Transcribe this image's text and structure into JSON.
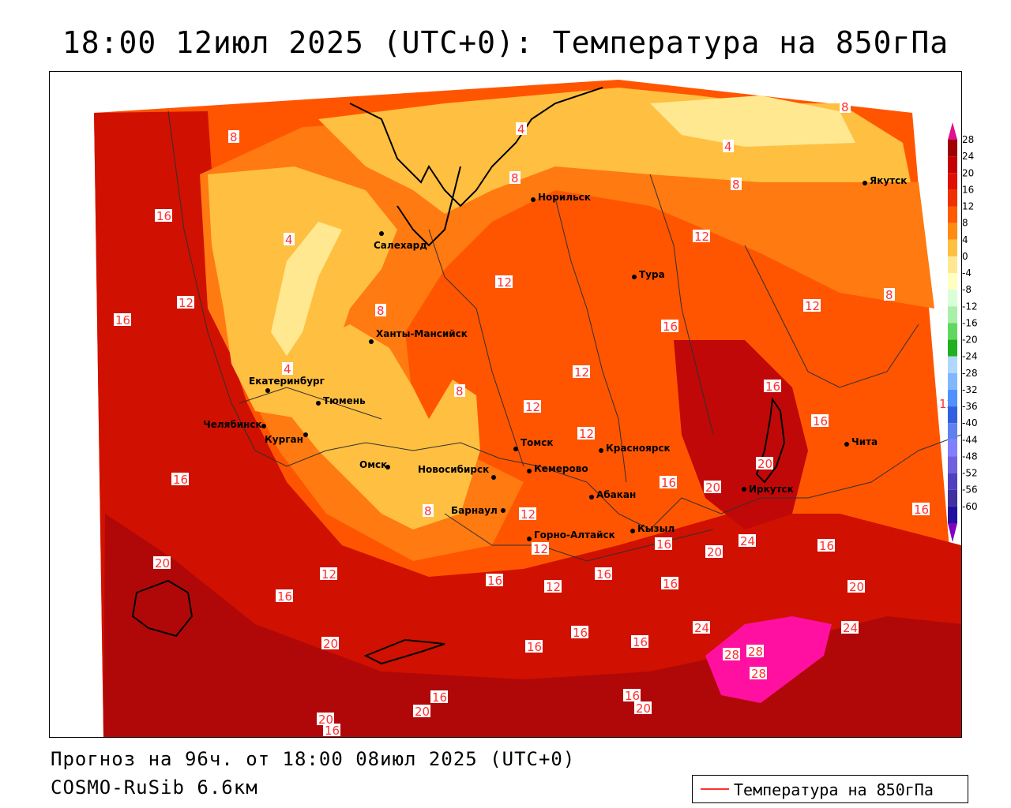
{
  "title": "18:00 12июл 2025 (UTC+0): Температура на 850гПа",
  "forecast_line": "Прогноз на 96ч. от 18:00 08июл 2025 (UTC+0)",
  "model_line": "COSMO-RuSib 6.6км",
  "legend": {
    "label": "Температура на 850гПа",
    "line_color": "#ff3030"
  },
  "cities": [
    {
      "name": "Норильск"
    },
    {
      "name": "Якутск"
    },
    {
      "name": "Салехард"
    },
    {
      "name": "Тура"
    },
    {
      "name": "Ханты-Мансийск"
    },
    {
      "name": "Екатеринбург"
    },
    {
      "name": "Тюмень"
    },
    {
      "name": "Челябинск"
    },
    {
      "name": "Курган"
    },
    {
      "name": "Омск"
    },
    {
      "name": "Новосибирск"
    },
    {
      "name": "Томск"
    },
    {
      "name": "Кемерово"
    },
    {
      "name": "Красноярск"
    },
    {
      "name": "Абакан"
    },
    {
      "name": "Барнаул"
    },
    {
      "name": "Горно-Алтайск"
    },
    {
      "name": "Кызыл"
    },
    {
      "name": "Иркутск"
    },
    {
      "name": "Чита"
    }
  ],
  "colorbar": {
    "ticks": [
      "28",
      "24",
      "20",
      "16",
      "12",
      "8",
      "4",
      "0",
      "-4",
      "-8",
      "-12",
      "-16",
      "-20",
      "-24",
      "-28",
      "-32",
      "-36",
      "-40",
      "-44",
      "-48",
      "-52",
      "-56",
      "-60"
    ],
    "colors": [
      "#a00000",
      "#c40000",
      "#e01000",
      "#f03000",
      "#ff5a00",
      "#ff8c10",
      "#ffc040",
      "#ffe890",
      "#ffffc0",
      "#d8ffd8",
      "#a8f0a8",
      "#60d860",
      "#20b020",
      "#b0d8ff",
      "#80b8ff",
      "#5090ff",
      "#3060e0",
      "#6080f0",
      "#8080ff",
      "#7060e0",
      "#5040c0",
      "#4030a0",
      "#2010a0"
    ]
  },
  "isotherm_labels": [
    "4",
    "8",
    "12",
    "16",
    "20",
    "24",
    "28"
  ],
  "colors": {
    "very_hot": "#a00000",
    "hot": "#d01000",
    "warm": "#ff5500",
    "mild": "#ff8c10",
    "cool": "#ffbf40",
    "cold": "#ffe890",
    "extreme": "#ff10a0"
  }
}
